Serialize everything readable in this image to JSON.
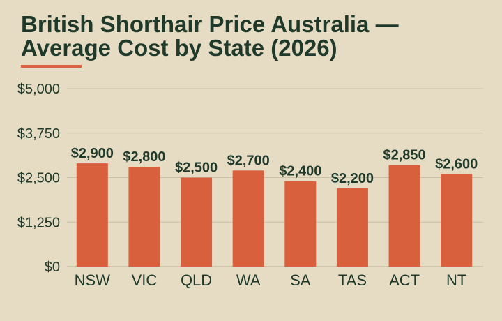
{
  "title_lines": [
    "British Shorthair Price Australia —",
    "Average Cost by State (2026)"
  ],
  "colors": {
    "background": "#e6dcc4",
    "title_text": "#1f3a2a",
    "accent": "#d9603d",
    "bar": "#d9603d",
    "gridline": "#c8bfa7",
    "axis_text": "#1f3a2a"
  },
  "chart_data": {
    "type": "bar",
    "title": "British Shorthair Price Australia — Average Cost by State (2026)",
    "xlabel": "",
    "ylabel": "",
    "categories": [
      "NSW",
      "VIC",
      "QLD",
      "WA",
      "SA",
      "TAS",
      "ACT",
      "NT"
    ],
    "values": [
      2900,
      2800,
      2500,
      2700,
      2400,
      2200,
      2850,
      2600
    ],
    "value_labels": [
      "$2,900",
      "$2,800",
      "$2,500",
      "$2,700",
      "$2,400",
      "$2,200",
      "$2,850",
      "$2,600"
    ],
    "ylim": [
      0,
      5000
    ],
    "yticks": [
      0,
      1250,
      2500,
      3750,
      5000
    ],
    "ytick_labels": [
      "$0",
      "$1,250",
      "$2,500",
      "$3,750",
      "$5,000"
    ],
    "grid": true,
    "legend": "none"
  }
}
